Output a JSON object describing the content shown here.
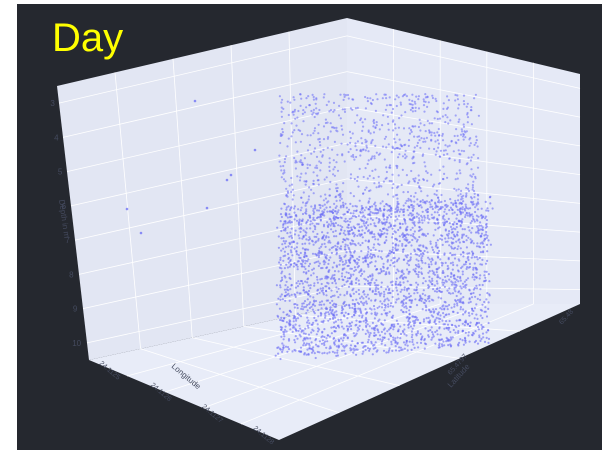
{
  "title": "Day",
  "chart_data": {
    "type": "scatter",
    "mode": "3d",
    "marker_color": "#6a6cf5",
    "background_color": "#25282f",
    "scene_color": "#e5e9f6",
    "title_color": "#ffff00",
    "axes": {
      "z": {
        "label": "Depth in m",
        "ticks": [
          "3",
          "4",
          "5",
          "6",
          "7",
          "8",
          "9",
          "10"
        ],
        "reversed": true,
        "range": [
          2.5,
          10.5
        ]
      },
      "x": {
        "label": "Longitude",
        "ticks": [
          "24.1125",
          "24.1126",
          "24.1127",
          "24.1128"
        ]
      },
      "y": {
        "label": "Latitude",
        "ticks": [
          "65.4797",
          "65.48"
        ]
      }
    },
    "grid": true,
    "series": [
      {
        "values_summary": "several thousand points; dense cluster between depth ~7 and ~10 m, sparser points up to ~3 m",
        "core": {
          "x_range": [
            24.11258,
            24.11268
          ],
          "y_range": [
            65.47975,
            65.47995
          ],
          "z_range": [
            3,
            10
          ]
        },
        "outliers": [
          {
            "x": 24.11255,
            "y": 65.47962,
            "z": 3.0
          },
          {
            "x": 24.11252,
            "y": 65.4796,
            "z": 5.5
          },
          {
            "x": 24.11256,
            "y": 65.47958,
            "z": 6.0
          },
          {
            "x": 24.1125,
            "y": 65.47955,
            "z": 7.0
          },
          {
            "x": 24.11248,
            "y": 65.47955,
            "z": 7.5
          }
        ]
      }
    ]
  }
}
